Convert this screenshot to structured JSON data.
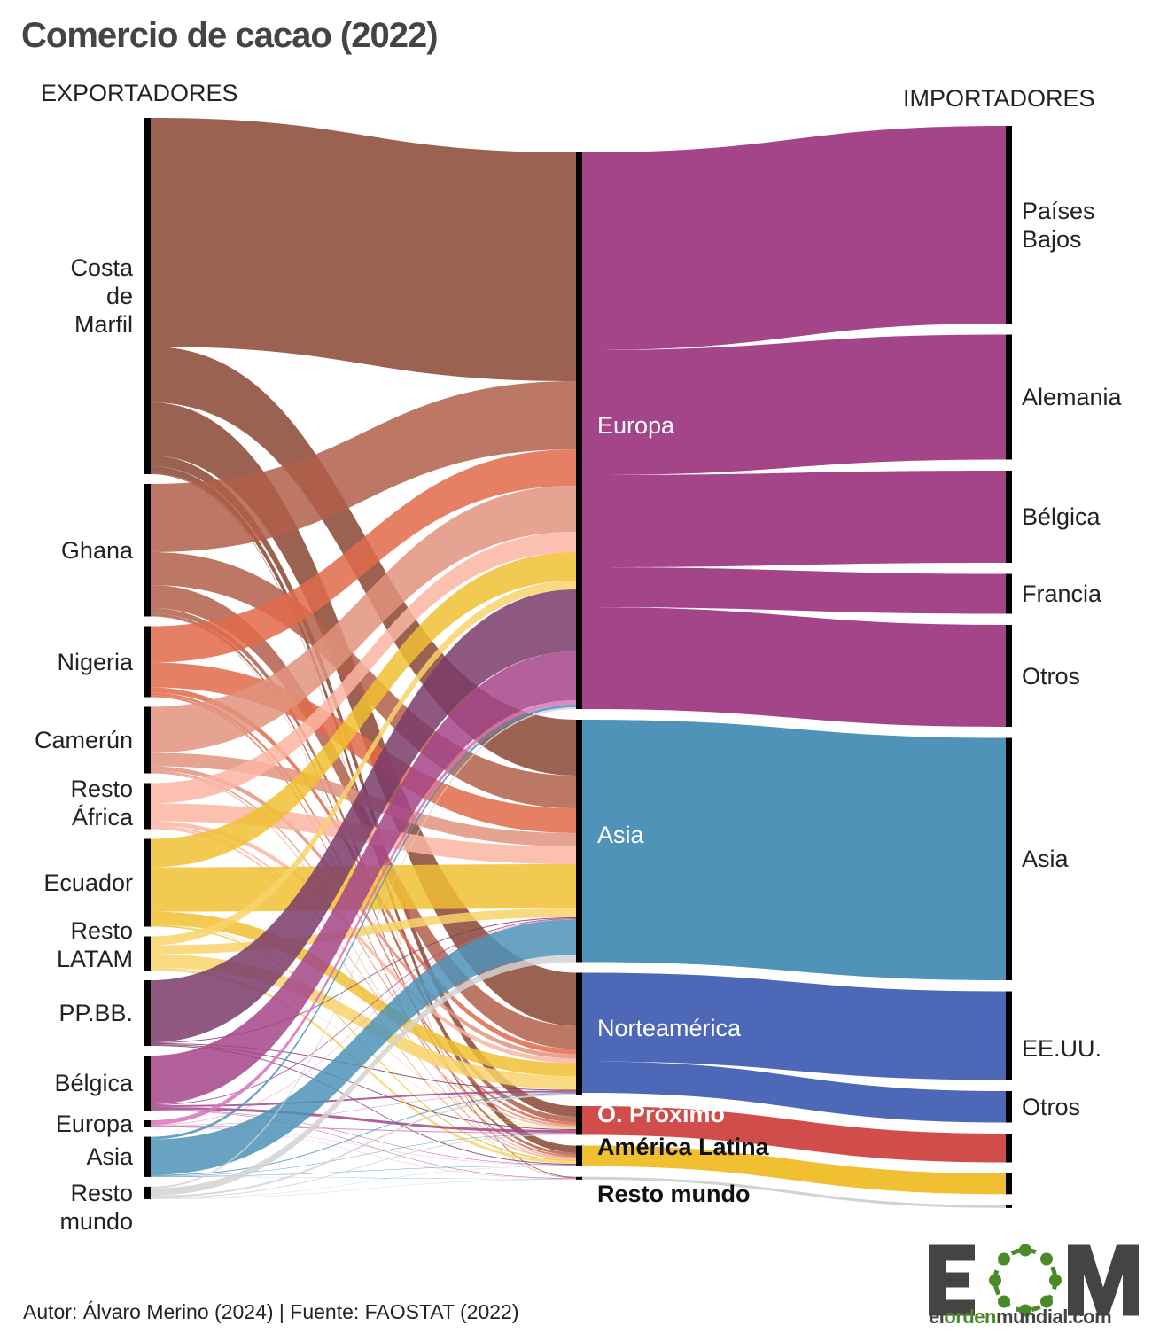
{
  "title": "Comercio de cacao (2022)",
  "exporters_label": "EXPORTADORES",
  "importers_label": "IMPORTADORES",
  "footer": "Autor: Álvaro Merino (2024) | Fuente: FAOSTAT (2022)",
  "logo": {
    "letters": "EOM",
    "site_a": "el",
    "site_b": "orden",
    "site_c": "mundial.com"
  },
  "chart_data": {
    "type": "sankey",
    "title": "Comercio de cacao (2022)",
    "columns": [
      "EXPORTADORES",
      "",
      "IMPORTADORES"
    ],
    "nodes": [
      {
        "id": "cdm",
        "label": "Costa\nde\nMarfil",
        "col": 0,
        "color": "#8b4733"
      },
      {
        "id": "gha",
        "label": "Ghana",
        "col": 0,
        "color": "#b05f4a"
      },
      {
        "id": "nga",
        "label": "Nigeria",
        "col": 0,
        "color": "#e06a4a"
      },
      {
        "id": "cmr",
        "label": "Camerún",
        "col": 0,
        "color": "#e2937e"
      },
      {
        "id": "raf",
        "label": "Resto\nÁfrica",
        "col": 0,
        "color": "#fbb5a2"
      },
      {
        "id": "ecu",
        "label": "Ecuador",
        "col": 0,
        "color": "#f0c032"
      },
      {
        "id": "rla",
        "label": "Resto\nLATAM",
        "col": 0,
        "color": "#f8d46a"
      },
      {
        "id": "ppbb",
        "label": "PP.BB.",
        "col": 0,
        "color": "#7a3b6b"
      },
      {
        "id": "bel",
        "label": "Bélgica",
        "col": 0,
        "color": "#a4458a"
      },
      {
        "id": "eur0",
        "label": "Europa",
        "col": 0,
        "color": "#d872b8"
      },
      {
        "id": "asi0",
        "label": "Asia",
        "col": 0,
        "color": "#4f93b8"
      },
      {
        "id": "rmu0",
        "label": "Resto\nmundo",
        "col": 0,
        "color": "#d2d2d2"
      },
      {
        "id": "EU",
        "label": "Europa",
        "col": 1,
        "color": "#a4458a",
        "labelColor": "#ffffff"
      },
      {
        "id": "AS",
        "label": "Asia",
        "col": 1,
        "color": "#4f93b8",
        "labelColor": "#ffffff"
      },
      {
        "id": "NA",
        "label": "Norteamérica",
        "col": 1,
        "color": "#4e68b8",
        "labelColor": "#ffffff"
      },
      {
        "id": "OP",
        "label": "O. Próximo",
        "col": 1,
        "color": "#d04d4c",
        "labelColor": "#ffffff",
        "bold": true
      },
      {
        "id": "AL",
        "label": "América Latina",
        "col": 1,
        "color": "#f0c032",
        "labelColor": "#111111",
        "bold": true
      },
      {
        "id": "RM",
        "label": "Resto mundo",
        "col": 1,
        "color": "#d2d2d2",
        "labelColor": "#111111",
        "bold": true
      },
      {
        "id": "pb",
        "label": "Países\nBajos",
        "col": 2
      },
      {
        "id": "de",
        "label": "Alemania",
        "col": 2
      },
      {
        "id": "be",
        "label": "Bélgica",
        "col": 2
      },
      {
        "id": "fr",
        "label": "Francia",
        "col": 2
      },
      {
        "id": "oe",
        "label": "Otros",
        "col": 2
      },
      {
        "id": "as",
        "label": "Asia",
        "col": 2
      },
      {
        "id": "us",
        "label": "EE.UU.",
        "col": 2
      },
      {
        "id": "on",
        "label": "Otros",
        "col": 2
      },
      {
        "id": "op",
        "label": "",
        "col": 2
      },
      {
        "id": "al",
        "label": "",
        "col": 2
      },
      {
        "id": "rm",
        "label": "",
        "col": 2
      }
    ],
    "links": [
      [
        "cdm",
        "EU",
        258
      ],
      [
        "cdm",
        "AS",
        63
      ],
      [
        "cdm",
        "NA",
        60
      ],
      [
        "cdm",
        "OP",
        12
      ],
      [
        "cdm",
        "AL",
        8
      ],
      [
        "cdm",
        "RM",
        1
      ],
      [
        "gha",
        "EU",
        77
      ],
      [
        "gha",
        "AS",
        37
      ],
      [
        "gha",
        "NA",
        26
      ],
      [
        "gha",
        "OP",
        6
      ],
      [
        "gha",
        "AL",
        3
      ],
      [
        "gha",
        "RM",
        0.5
      ],
      [
        "nga",
        "EU",
        41
      ],
      [
        "nga",
        "AS",
        28
      ],
      [
        "nga",
        "NA",
        6
      ],
      [
        "nga",
        "OP",
        3
      ],
      [
        "nga",
        "AL",
        2
      ],
      [
        "cmr",
        "EU",
        52
      ],
      [
        "cmr",
        "AS",
        15
      ],
      [
        "cmr",
        "NA",
        5
      ],
      [
        "cmr",
        "OP",
        2
      ],
      [
        "cmr",
        "AL",
        1
      ],
      [
        "raf",
        "EU",
        23
      ],
      [
        "raf",
        "AS",
        20
      ],
      [
        "raf",
        "NA",
        5
      ],
      [
        "raf",
        "OP",
        2
      ],
      [
        "raf",
        "AL",
        2
      ],
      [
        "ecu",
        "EU",
        32
      ],
      [
        "ecu",
        "AS",
        50
      ],
      [
        "ecu",
        "NA",
        15
      ],
      [
        "ecu",
        "OP",
        0.5
      ],
      [
        "ecu",
        "AL",
        1.5
      ],
      [
        "rla",
        "EU",
        10
      ],
      [
        "rla",
        "AS",
        10
      ],
      [
        "rla",
        "NA",
        15
      ],
      [
        "rla",
        "OP",
        0.5
      ],
      [
        "rla",
        "AL",
        3
      ],
      [
        "ppbb",
        "EU",
        70
      ],
      [
        "ppbb",
        "AS",
        1
      ],
      [
        "ppbb",
        "NA",
        1
      ],
      [
        "ppbb",
        "OP",
        1
      ],
      [
        "ppbb",
        "AL",
        1
      ],
      [
        "bel",
        "EU",
        55
      ],
      [
        "bel",
        "AS",
        1
      ],
      [
        "bel",
        "NA",
        2
      ],
      [
        "bel",
        "OP",
        3
      ],
      [
        "bel",
        "AL",
        0.5
      ],
      [
        "bel",
        "RM",
        0.5
      ],
      [
        "eur0",
        "EU",
        5
      ],
      [
        "eur0",
        "AS",
        0.5
      ],
      [
        "eur0",
        "NA",
        0.5
      ],
      [
        "eur0",
        "OP",
        1
      ],
      [
        "eur0",
        "AL",
        0.3
      ],
      [
        "eur0",
        "RM",
        0.3
      ],
      [
        "asi0",
        "EU",
        3
      ],
      [
        "asi0",
        "AS",
        40
      ],
      [
        "asi0",
        "NA",
        1
      ],
      [
        "asi0",
        "OP",
        0.5
      ],
      [
        "asi0",
        "AL",
        0.5
      ],
      [
        "asi0",
        "RM",
        0.3
      ],
      [
        "rmu0",
        "EU",
        2
      ],
      [
        "rmu0",
        "AS",
        8
      ],
      [
        "rmu0",
        "NA",
        2
      ],
      [
        "rmu0",
        "OP",
        1
      ],
      [
        "rmu0",
        "AL",
        0.5
      ],
      [
        "rmu0",
        "RM",
        0.5
      ],
      [
        "EU",
        "pb",
        223
      ],
      [
        "EU",
        "de",
        141
      ],
      [
        "EU",
        "be",
        104
      ],
      [
        "EU",
        "fr",
        45
      ],
      [
        "EU",
        "oe",
        115
      ],
      [
        "AS",
        "as",
        273.5
      ],
      [
        "NA",
        "us",
        100
      ],
      [
        "NA",
        "on",
        35.5
      ],
      [
        "OP",
        "op",
        32.5
      ],
      [
        "AL",
        "al",
        23.3
      ],
      [
        "RM",
        "rm",
        3.1
      ]
    ]
  }
}
